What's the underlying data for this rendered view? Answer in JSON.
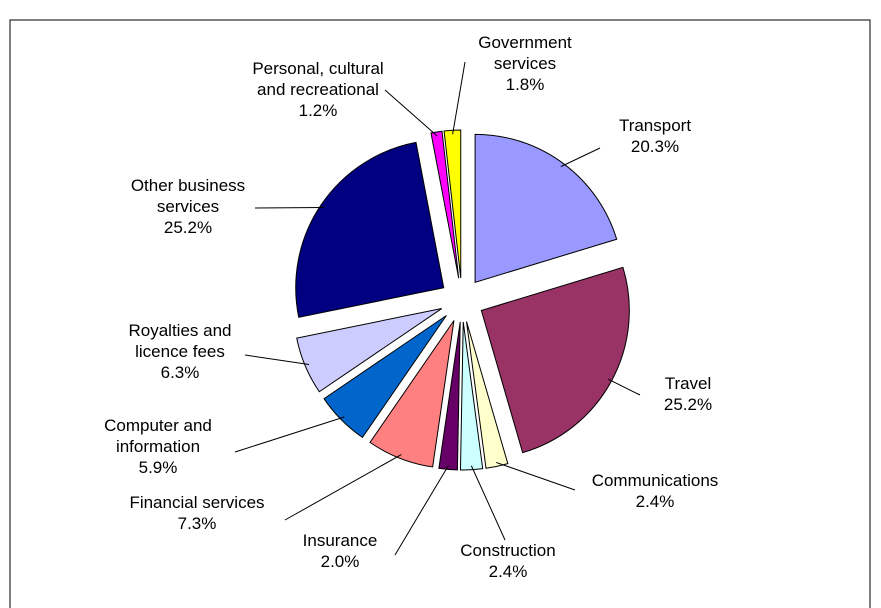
{
  "chart_data": {
    "type": "pie",
    "categories": [
      "Transport",
      "Travel",
      "Communications",
      "Construction",
      "Insurance",
      "Financial services",
      "Computer and information",
      "Royalties and licence fees",
      "Other business services",
      "Personal, cultural and recreational",
      "Government services"
    ],
    "values": [
      20.3,
      25.2,
      2.4,
      2.4,
      2.0,
      7.3,
      5.9,
      6.3,
      25.2,
      1.2,
      1.8
    ],
    "value_labels": [
      "20.3%",
      "25.2%",
      "2.4%",
      "2.4%",
      "2.0%",
      "7.3%",
      "5.9%",
      "6.3%",
      "25.2%",
      "1.2%",
      "1.8%"
    ],
    "colors": [
      "#9999ff",
      "#993366",
      "#ffffcc",
      "#ccffff",
      "#660066",
      "#ff8080",
      "#0066cc",
      "#ccccff",
      "#000080",
      "#ff00ff",
      "#ffff00"
    ]
  }
}
